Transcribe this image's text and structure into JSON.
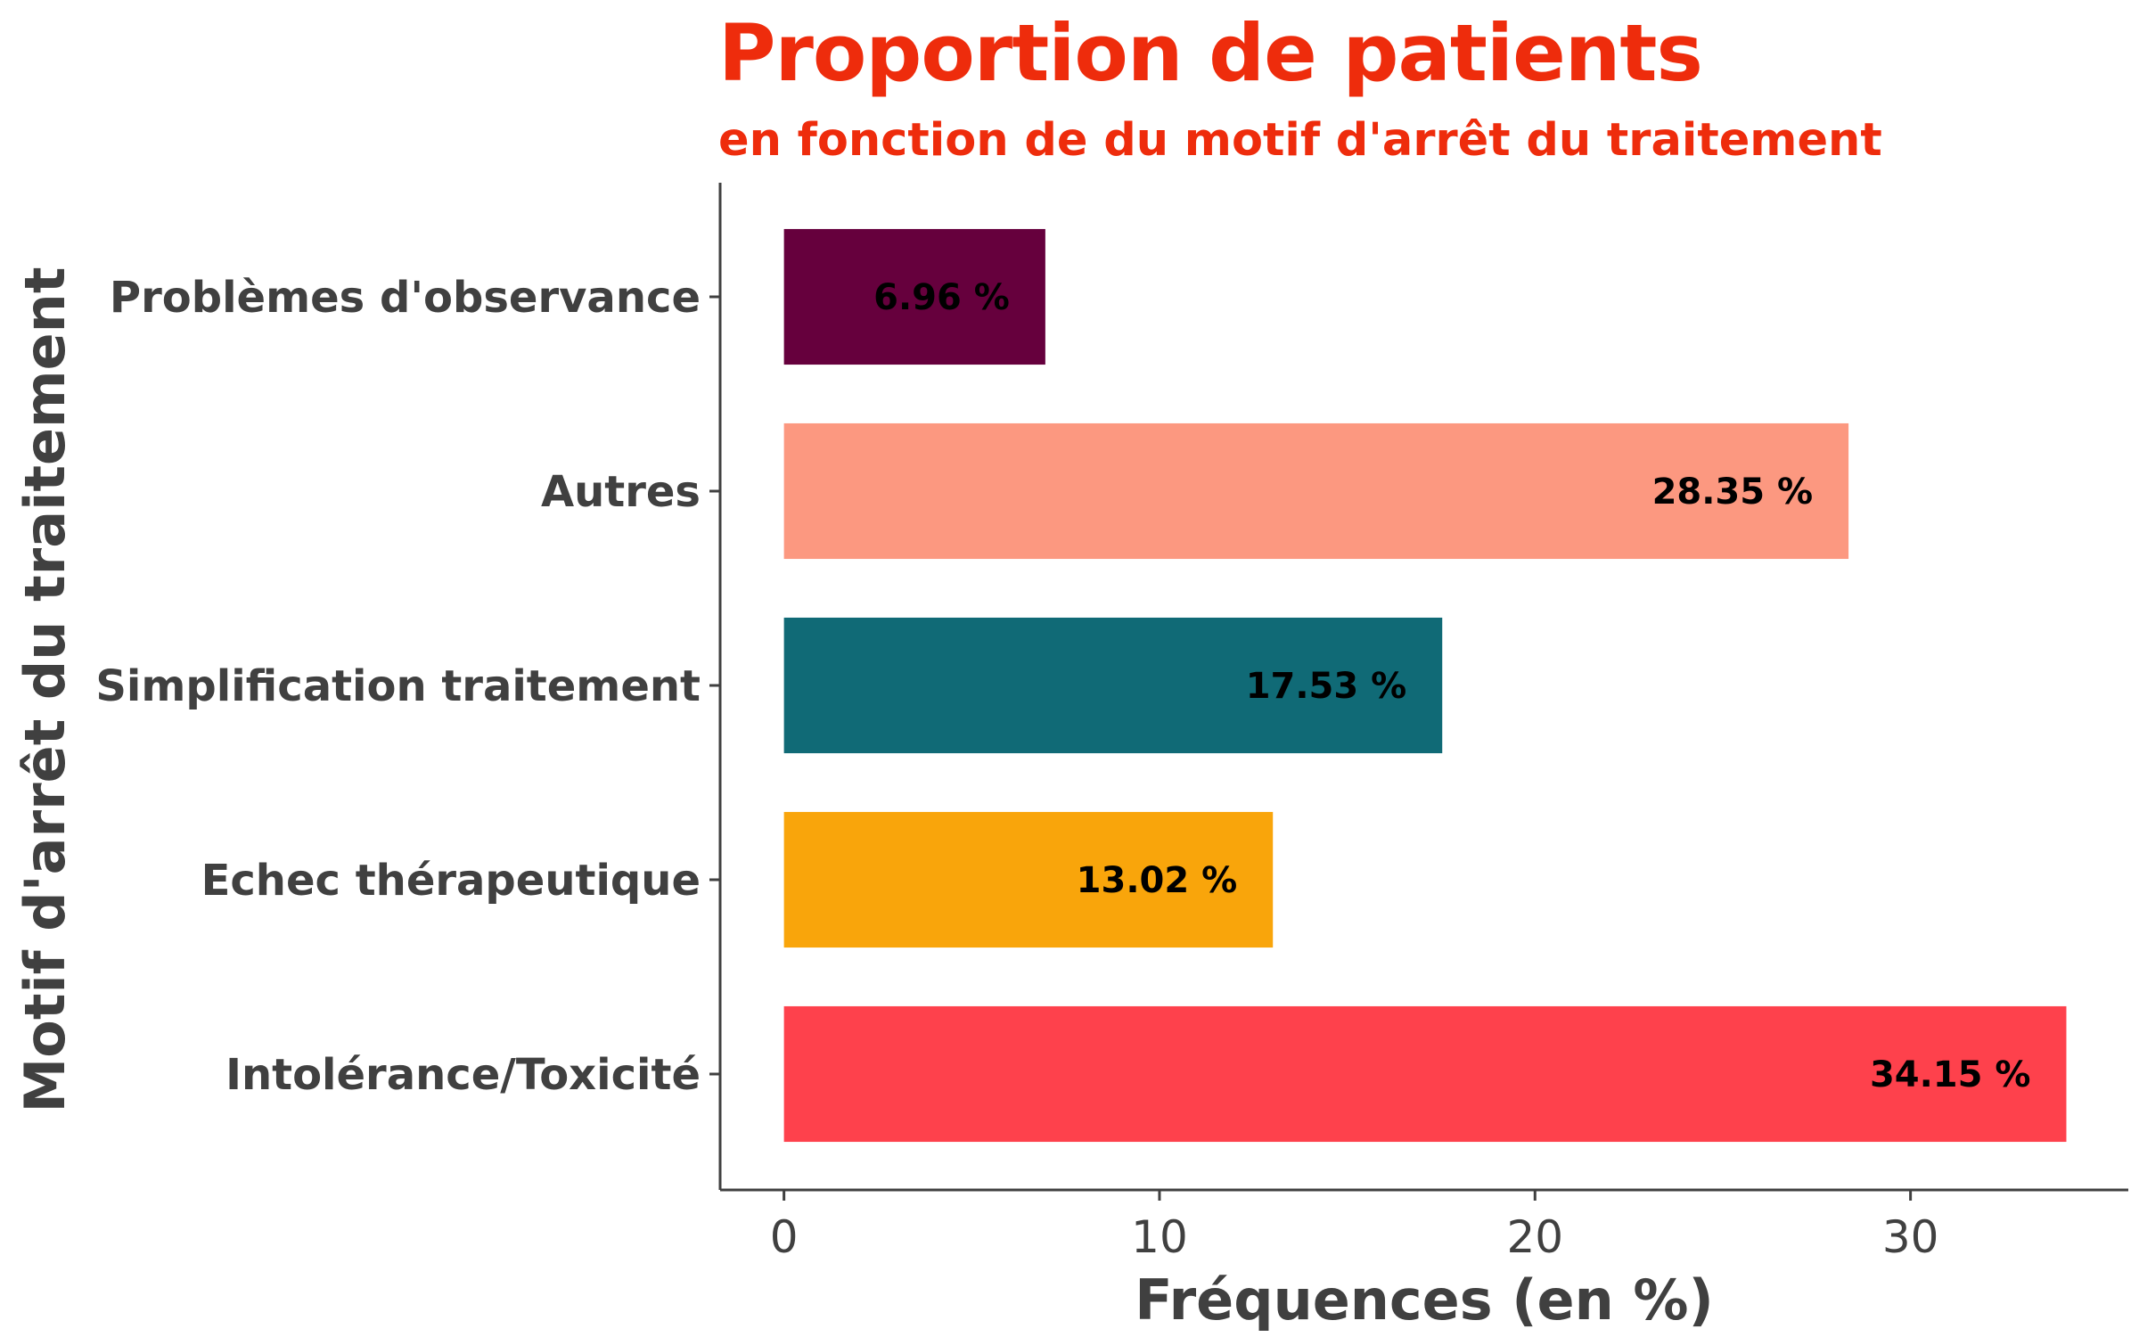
{
  "chart_data": {
    "type": "bar",
    "orientation": "horizontal",
    "title": "Proportion de patients",
    "subtitle": "en fonction de du motif d'arrêt du traitement",
    "xlabel": "Fréquences (en %)",
    "ylabel": "Motif d'arrêt du traitement",
    "categories": [
      "Problèmes d'observance",
      "Autres",
      "Simplification traitement",
      "Echec thérapeutique",
      "Intolérance/Toxicité"
    ],
    "values": [
      6.96,
      28.35,
      17.53,
      13.02,
      34.15
    ],
    "data_labels": [
      "6.96 %",
      "28.35 %",
      "17.53 %",
      "13.02 %",
      "34.15 %"
    ],
    "colors": [
      "#66003d",
      "#fc9880",
      "#106a76",
      "#f9a50b",
      "#fe414c"
    ],
    "xticks": [
      0,
      10,
      20,
      30
    ],
    "xlim": [
      -1.7,
      35.8
    ],
    "grid": false,
    "legend": "none",
    "title_color": "#ee2c0c"
  }
}
